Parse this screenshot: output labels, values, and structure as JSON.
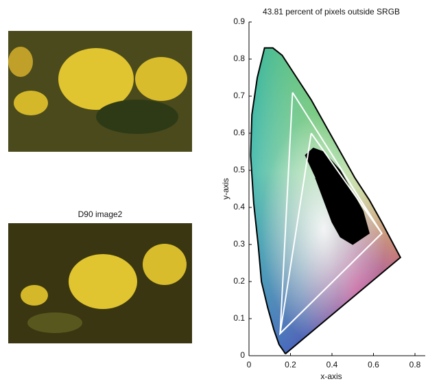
{
  "image_title": "D90 image2",
  "chart_data": {
    "type": "chromaticity",
    "title": "43.81 percent of pixels outside SRGB",
    "x_label": "x-axis",
    "y_label": "y-axis",
    "xlim": [
      0,
      0.8
    ],
    "ylim": [
      0,
      0.9
    ],
    "xticks": [
      0,
      0.2,
      0.4,
      0.6,
      0.8
    ],
    "yticks": [
      0,
      0.1,
      0.2,
      0.3,
      0.4,
      0.5,
      0.6,
      0.7,
      0.8,
      0.9
    ],
    "series": [
      {
        "color": "#000000",
        "filled": false,
        "x": [
          0.175,
          0.17,
          0.145,
          0.12,
          0.09,
          0.06,
          0.045,
          0.023,
          0.008,
          0.014,
          0.04,
          0.075,
          0.115,
          0.16,
          0.23,
          0.3,
          0.37,
          0.44,
          0.51,
          0.58,
          0.64,
          0.73,
          0.175
        ],
        "y": [
          0.005,
          0.01,
          0.03,
          0.07,
          0.13,
          0.2,
          0.295,
          0.41,
          0.54,
          0.65,
          0.75,
          0.83,
          0.83,
          0.81,
          0.75,
          0.69,
          0.62,
          0.55,
          0.48,
          0.42,
          0.36,
          0.265,
          0.005
        ]
      },
      {
        "color": "#000000",
        "filled": true,
        "x": [
          0.27,
          0.31,
          0.36,
          0.44,
          0.55,
          0.58,
          0.5,
          0.44,
          0.4,
          0.36,
          0.32
        ],
        "y": [
          0.54,
          0.56,
          0.55,
          0.5,
          0.39,
          0.33,
          0.3,
          0.32,
          0.36,
          0.42,
          0.48
        ]
      },
      {
        "color": "#ffffff",
        "filled": false,
        "x": [
          0.21,
          0.64,
          0.15,
          0.21
        ],
        "y": [
          0.71,
          0.33,
          0.06,
          0.71
        ]
      },
      {
        "color": "#ffffff",
        "filled": false,
        "x": [
          0.3,
          0.64,
          0.15,
          0.3
        ],
        "y": [
          0.6,
          0.33,
          0.06,
          0.6
        ]
      }
    ]
  }
}
